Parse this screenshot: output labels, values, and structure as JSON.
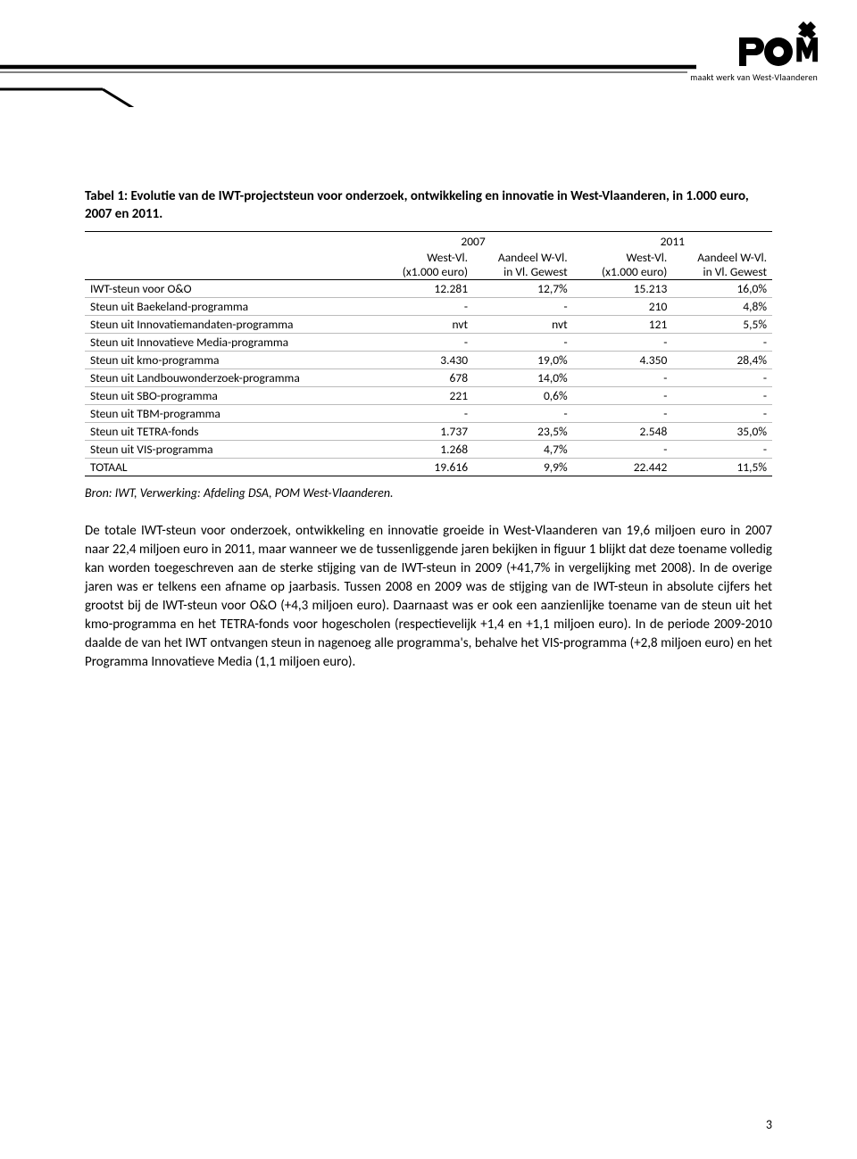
{
  "logo": {
    "tagline": "maakt werk van West-Vlaanderen",
    "text_color": "#000000"
  },
  "header_lines": {
    "stroke": "#000000"
  },
  "title": "Tabel 1: Evolutie van de IWT-projectsteun voor onderzoek, ontwikkeling en innovatie in West-Vlaanderen, in 1.000 euro, 2007 en 2011.",
  "table": {
    "years": [
      "2007",
      "2011"
    ],
    "col_sub": [
      {
        "l1": "West-Vl.",
        "l2": "(x1.000 euro)"
      },
      {
        "l1": "Aandeel W-Vl.",
        "l2": "in Vl. Gewest"
      },
      {
        "l1": "West-Vl.",
        "l2": "(x1.000 euro)"
      },
      {
        "l1": "Aandeel W-Vl.",
        "l2": "in Vl. Gewest"
      }
    ],
    "rows": [
      {
        "label": "IWT-steun voor O&O",
        "c": [
          "12.281",
          "12,7%",
          "15.213",
          "16,0%"
        ]
      },
      {
        "label": "Steun uit Baekeland-programma",
        "c": [
          "-",
          "-",
          "210",
          "4,8%"
        ]
      },
      {
        "label": "Steun uit Innovatiemandaten-programma",
        "c": [
          "nvt",
          "nvt",
          "121",
          "5,5%"
        ]
      },
      {
        "label": "Steun uit Innovatieve Media-programma",
        "c": [
          "-",
          "-",
          "-",
          "-"
        ]
      },
      {
        "label": "Steun uit kmo-programma",
        "c": [
          "3.430",
          "19,0%",
          "4.350",
          "28,4%"
        ]
      },
      {
        "label": "Steun uit Landbouwonderzoek-programma",
        "c": [
          "678",
          "14,0%",
          "-",
          "-"
        ]
      },
      {
        "label": "Steun uit SBO-programma",
        "c": [
          "221",
          "0,6%",
          "-",
          "-"
        ]
      },
      {
        "label": "Steun uit TBM-programma",
        "c": [
          "-",
          "-",
          "-",
          "-"
        ]
      },
      {
        "label": "Steun uit TETRA-fonds",
        "c": [
          "1.737",
          "23,5%",
          "2.548",
          "35,0%"
        ]
      },
      {
        "label": "Steun uit VIS-programma",
        "c": [
          "1.268",
          "4,7%",
          "-",
          "-"
        ]
      }
    ],
    "total": {
      "label": "TOTAAL",
      "c": [
        "19.616",
        "9,9%",
        "22.442",
        "11,5%"
      ]
    },
    "border_color": "#000000",
    "row_rule_color": "#bbbbbb",
    "font_size_pt": 10
  },
  "source": "Bron: IWT, Verwerking: Afdeling DSA, POM West-Vlaanderen.",
  "body": "De totale IWT-steun voor onderzoek, ontwikkeling en innovatie groeide in West-Vlaanderen van 19,6 miljoen euro in 2007 naar 22,4 miljoen euro in 2011, maar wanneer we de tussenliggende jaren bekijken in figuur 1 blijkt dat deze toename volledig kan worden toegeschreven aan de sterke stijging van de IWT-steun in 2009 (+41,7% in vergelijking met 2008). In de overige jaren was er telkens een afname op jaarbasis. Tussen 2008 en 2009 was de stijging van de IWT-steun in absolute cijfers het grootst bij de IWT-steun voor O&O (+4,3 miljoen euro). Daarnaast was er ook een aanzienlijke toename van de steun uit het kmo-programma en het TETRA-fonds voor hogescholen (respectievelijk +1,4 en +1,1 miljoen euro). In de periode 2009-2010 daalde de van het IWT ontvangen steun in nagenoeg alle programma's, behalve het VIS-programma (+2,8 miljoen euro) en het Programma Innovatieve Media (1,1 miljoen euro).",
  "page_number": "3",
  "colors": {
    "text": "#000000",
    "background": "#ffffff"
  }
}
